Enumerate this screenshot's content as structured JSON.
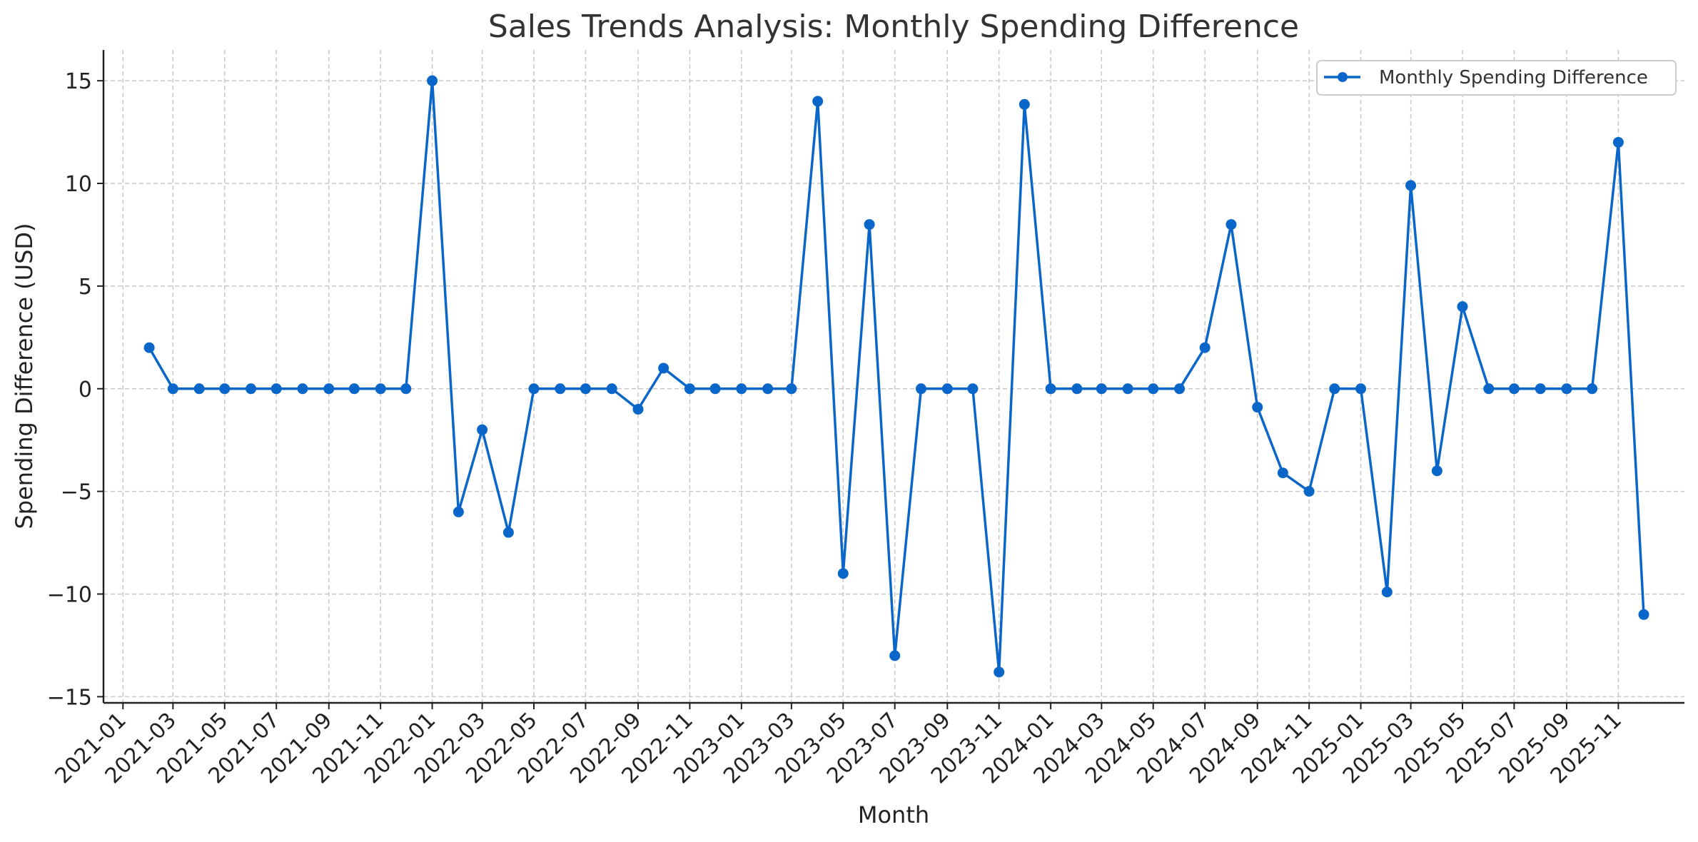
{
  "chart_data": {
    "type": "line",
    "title": "Sales Trends Analysis: Monthly Spending Difference",
    "xlabel": "Month",
    "ylabel": "Spending Difference (USD)",
    "x_ticks": [
      "2021-01",
      "2021-03",
      "2021-05",
      "2021-07",
      "2021-09",
      "2021-11",
      "2022-01",
      "2022-03",
      "2022-05",
      "2022-07",
      "2022-09",
      "2022-11",
      "2023-01",
      "2023-03",
      "2023-05",
      "2023-07",
      "2023-09",
      "2023-11",
      "2024-01",
      "2024-03",
      "2024-05",
      "2024-07",
      "2024-09",
      "2024-11",
      "2025-01",
      "2025-03",
      "2025-05",
      "2025-07",
      "2025-09",
      "2025-11"
    ],
    "y_ticks": [
      15,
      10,
      5,
      0,
      -5,
      -10,
      -15
    ],
    "y_tick_labels": [
      "15",
      "10",
      "5",
      "0",
      "−5",
      "−10",
      "−15"
    ],
    "ylim": [
      -15.3,
      16.5
    ],
    "xlim": [
      "2020-12-09",
      "2026-01-18"
    ],
    "grid": true,
    "legend_position": "top-right",
    "line_color": "#0a66c8",
    "series": [
      {
        "name": "Monthly Spending Difference",
        "x": [
          "2021-02",
          "2021-03",
          "2021-04",
          "2021-05",
          "2021-06",
          "2021-07",
          "2021-08",
          "2021-09",
          "2021-10",
          "2021-11",
          "2021-12",
          "2022-01",
          "2022-02",
          "2022-03",
          "2022-04",
          "2022-05",
          "2022-06",
          "2022-07",
          "2022-08",
          "2022-09",
          "2022-10",
          "2022-11",
          "2022-12",
          "2023-01",
          "2023-02",
          "2023-03",
          "2023-04",
          "2023-05",
          "2023-06",
          "2023-07",
          "2023-08",
          "2023-09",
          "2023-10",
          "2023-11",
          "2023-12",
          "2024-01",
          "2024-02",
          "2024-03",
          "2024-04",
          "2024-05",
          "2024-06",
          "2024-07",
          "2024-08",
          "2024-09",
          "2024-10",
          "2024-11",
          "2024-12",
          "2025-01",
          "2025-02",
          "2025-03",
          "2025-04",
          "2025-05",
          "2025-06",
          "2025-07",
          "2025-08",
          "2025-09",
          "2025-10",
          "2025-11",
          "2025-12"
        ],
        "values": [
          2,
          0,
          0,
          0,
          0,
          0,
          0,
          0,
          0,
          0,
          0,
          15,
          -6,
          -2,
          -7,
          0,
          0,
          0,
          0,
          -1,
          1,
          0,
          0,
          0,
          0,
          0,
          14,
          -9,
          8,
          -13,
          0,
          0,
          0,
          -13.8,
          13.85,
          0,
          0,
          0,
          0,
          0,
          0,
          2,
          8,
          -0.9,
          -4.1,
          -5,
          0,
          0,
          -9.9,
          9.9,
          -4,
          4,
          0,
          0,
          0,
          0,
          0,
          12,
          -11
        ]
      }
    ]
  }
}
